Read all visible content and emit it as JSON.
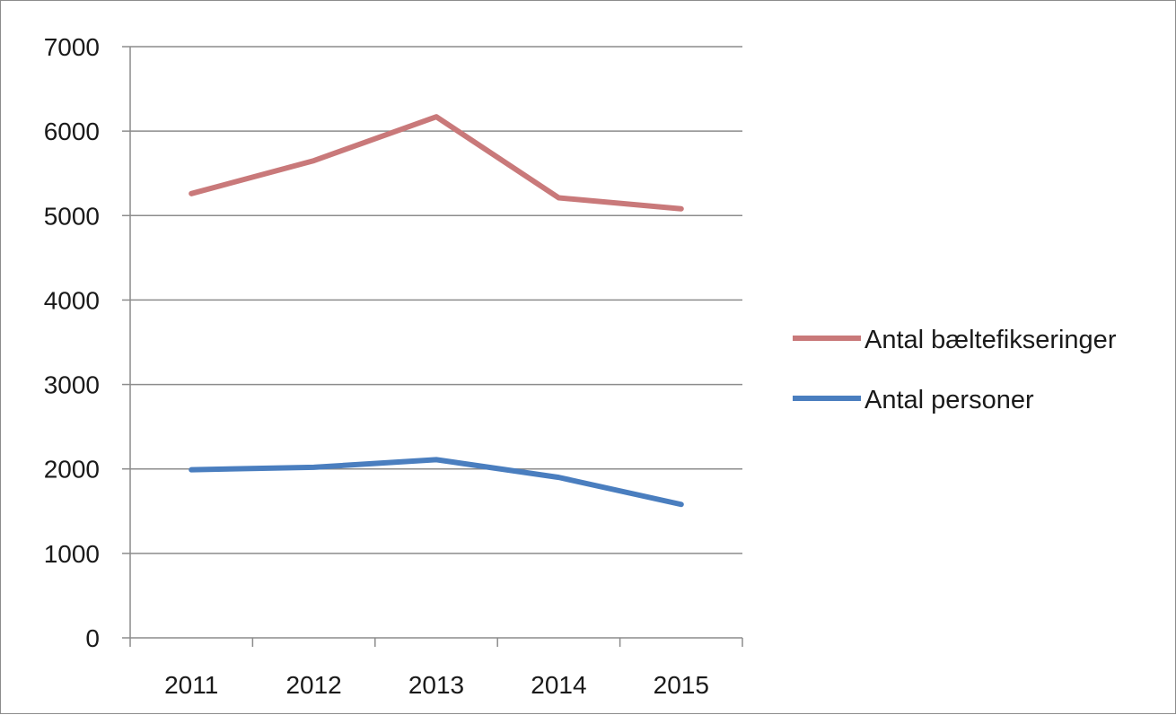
{
  "chart_data": {
    "type": "line",
    "title": "",
    "xlabel": "",
    "ylabel": "",
    "categories": [
      "2011",
      "2012",
      "2013",
      "2014",
      "2015"
    ],
    "ylim": [
      0,
      7000
    ],
    "yticks": [
      0,
      1000,
      2000,
      3000,
      4000,
      5000,
      6000,
      7000
    ],
    "grid": true,
    "legend_position": "right",
    "series": [
      {
        "name": "Antal bæltefikseringer",
        "color": "#c9797a",
        "values": [
          5260,
          5650,
          6170,
          5210,
          5080
        ]
      },
      {
        "name": "Antal personer",
        "color": "#4a7ebf",
        "values": [
          1990,
          2020,
          2110,
          1900,
          1580
        ]
      }
    ]
  }
}
